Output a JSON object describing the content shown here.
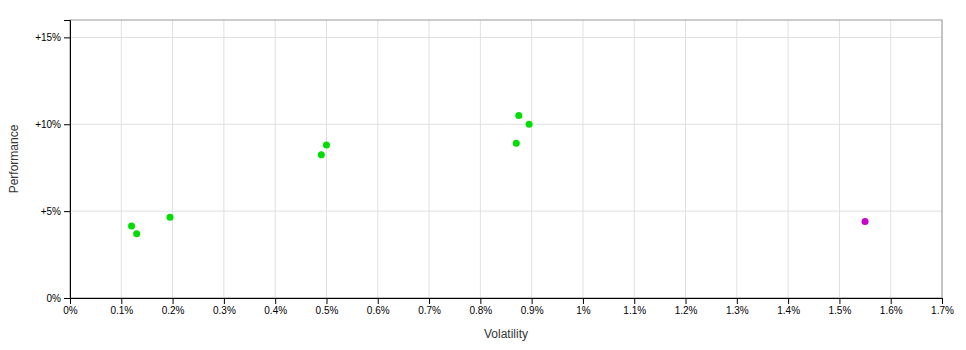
{
  "chart_data": {
    "type": "scatter",
    "xlabel": "Volatility",
    "ylabel": "Performance",
    "xlim": [
      0.0,
      0.017
    ],
    "ylim": [
      0.0,
      0.16
    ],
    "xticks": [
      {
        "value": 0.0,
        "label": "0%"
      },
      {
        "value": 0.001,
        "label": "0.1%"
      },
      {
        "value": 0.002,
        "label": "0.2%"
      },
      {
        "value": 0.003,
        "label": "0.3%"
      },
      {
        "value": 0.004,
        "label": "0.4%"
      },
      {
        "value": 0.005,
        "label": "0.5%"
      },
      {
        "value": 0.006,
        "label": "0.6%"
      },
      {
        "value": 0.007,
        "label": "0.7%"
      },
      {
        "value": 0.008,
        "label": "0.8%"
      },
      {
        "value": 0.009,
        "label": "0.9%"
      },
      {
        "value": 0.01,
        "label": "1%"
      },
      {
        "value": 0.011,
        "label": "1.1%"
      },
      {
        "value": 0.012,
        "label": "1.2%"
      },
      {
        "value": 0.013,
        "label": "1.3%"
      },
      {
        "value": 0.014,
        "label": "1.4%"
      },
      {
        "value": 0.015,
        "label": "1.5%"
      },
      {
        "value": 0.016,
        "label": "1.6%"
      },
      {
        "value": 0.017,
        "label": "1.7%"
      }
    ],
    "yticks": [
      {
        "value": 0.0,
        "label": "0%"
      },
      {
        "value": 0.05,
        "label": "+5%"
      },
      {
        "value": 0.1,
        "label": "+10%"
      },
      {
        "value": 0.15,
        "label": "+15%"
      }
    ],
    "grid": true,
    "series": [
      {
        "color": "#00dd00",
        "x": [
          0.0012,
          0.0013,
          0.00195,
          0.0049,
          0.005,
          0.0087,
          0.00875,
          0.00895
        ],
        "values": [
          0.0415,
          0.037,
          0.0465,
          0.0825,
          0.088,
          0.089,
          0.105,
          0.1
        ]
      },
      {
        "color": "#cc00cc",
        "x": [
          0.0155
        ],
        "values": [
          0.044
        ]
      }
    ]
  }
}
